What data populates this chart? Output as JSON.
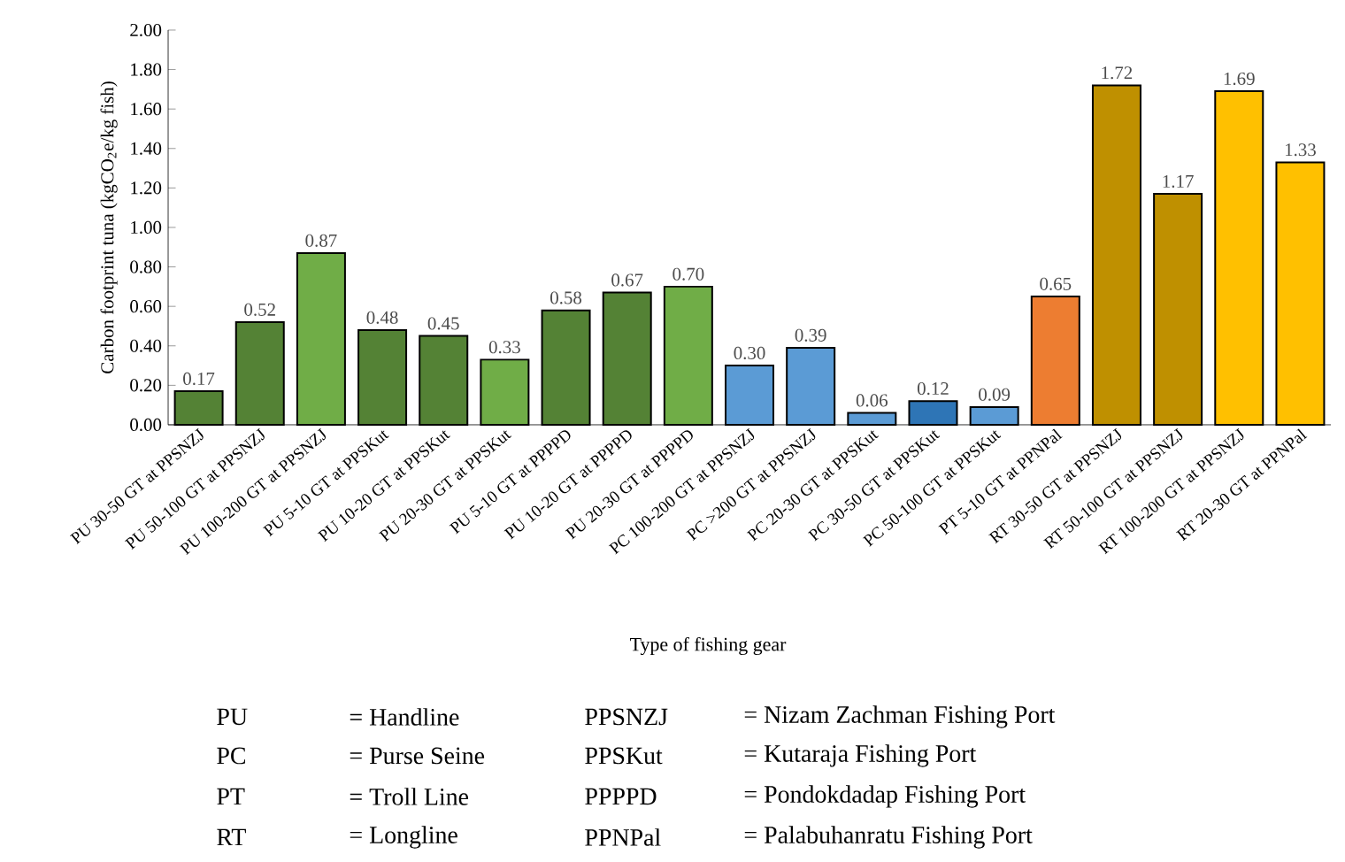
{
  "chart_data": {
    "type": "bar",
    "xlabel": "Type of fishing gear",
    "ylabel": "Carbon footprint tuna (kgCO$_{2}$e/kg fish)",
    "categories": [
      "PU 30-50 GT at PPSNZJ",
      "PU 50-100 GT at PPSNZJ",
      "PU 100-200 GT at PPSNZJ",
      "PU 5-10 GT at PPSKut",
      "PU 10-20 GT at PPSKut",
      "PU 20-30 GT at PPSKut",
      "PU 5-10 GT at PPPPD",
      "PU 10-20 GT at PPPPD",
      "PU 20-30 GT at PPPPD",
      "PC 100-200 GT at PPSNZJ",
      "PC >200 GT at PPSNZJ",
      "PC 20-30 GT at PPSKut",
      "PC 30-50 GT at PPSKut",
      "PC 50-100 GT at PPSKut",
      "PT 5-10 GT at PPNPal",
      "RT 30-50 GT at PPSNZJ",
      "RT 50-100 GT at PPSNZJ",
      "RT 100-200 GT at PPSNZJ",
      "RT 20-30 GT at PPNPal"
    ],
    "values": [
      0.17,
      0.52,
      0.87,
      0.48,
      0.45,
      0.33,
      0.58,
      0.67,
      0.7,
      0.3,
      0.39,
      0.06,
      0.12,
      0.09,
      0.65,
      1.72,
      1.17,
      1.69,
      1.33
    ],
    "value_labels": [
      "0.17",
      "0.52",
      "0.87",
      "0.48",
      "0.45",
      "0.33",
      "0.58",
      "0.67",
      "0.70",
      "0.30",
      "0.39",
      "0.06",
      "0.12",
      "0.09",
      "0.65",
      "1.72",
      "1.17",
      "1.69",
      "1.33"
    ],
    "colors": [
      "#548235",
      "#548235",
      "#70ad47",
      "#548235",
      "#548235",
      "#70ad47",
      "#548235",
      "#548235",
      "#70ad47",
      "#5b9bd5",
      "#5b9bd5",
      "#5b9bd5",
      "#2e75b6",
      "#5b9bd5",
      "#ed7d31",
      "#bf9000",
      "#bf9000",
      "#ffc000",
      "#ffc000"
    ],
    "ylim": [
      0,
      2
    ],
    "yticks": [
      {
        "value": 0,
        "label": "0.00"
      },
      {
        "value": 0.2,
        "label": "0.20"
      },
      {
        "value": 0.4,
        "label": "0.40"
      },
      {
        "value": 0.6,
        "label": "0.60"
      },
      {
        "value": 0.8,
        "label": "0.80"
      },
      {
        "value": 1,
        "label": "1.00"
      },
      {
        "value": 1.2,
        "label": "1.20"
      },
      {
        "value": 1.4,
        "label": "1.40"
      },
      {
        "value": 1.6,
        "label": "1.60"
      },
      {
        "value": 1.8,
        "label": "1.80"
      },
      {
        "value": 2,
        "label": "2.00"
      }
    ],
    "grid": false,
    "annotations": [
      "PU",
      "= Handline",
      "PPSNZJ",
      "= Nizam Zachman Fishing Port",
      "PC",
      "= Purse Seine",
      "PPSKut",
      "= Kutaraja Fishing Port",
      "PT",
      "= Troll Line",
      "PPPPD",
      "= Pondokdadap Fishing Port",
      "RT",
      "= Longline",
      "PPNPal",
      "= Palabuhanratu Fishing Port"
    ]
  }
}
